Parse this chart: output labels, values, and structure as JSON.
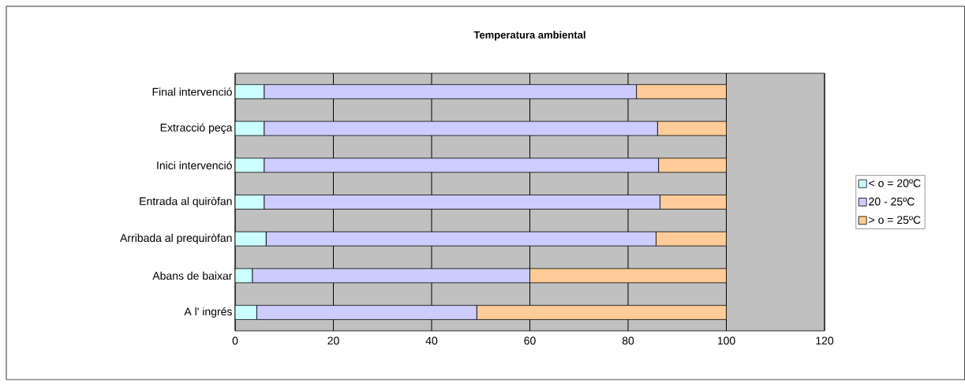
{
  "chart_data": {
    "type": "bar",
    "orientation": "horizontal",
    "stacked": true,
    "title": "Temperatura ambiental",
    "categories": [
      "Final intervenció",
      "Extracció peça",
      "Inici intervenció",
      "Entrada al quiròfan",
      "Arribada al prequiròfan",
      "Abans de baixar",
      "A l' ingrés"
    ],
    "series": [
      {
        "name": "< o = 20ºC",
        "color": "#ccffff",
        "values": [
          5.9,
          5.9,
          5.9,
          5.9,
          6.3,
          3.5,
          4.4
        ]
      },
      {
        "name": "20 - 25ºC",
        "color": "#ccccff",
        "values": [
          75.8,
          80.1,
          80.3,
          80.6,
          79.4,
          56.5,
          44.8
        ]
      },
      {
        "name": "> o = 25ºC",
        "color": "#ffcc99",
        "values": [
          18.3,
          14.0,
          13.8,
          13.5,
          14.3,
          40.0,
          50.8
        ]
      }
    ],
    "xlim": [
      0,
      120
    ],
    "xticks": [
      0,
      20,
      40,
      60,
      80,
      100,
      120
    ],
    "grid": "x",
    "legend": "right"
  }
}
